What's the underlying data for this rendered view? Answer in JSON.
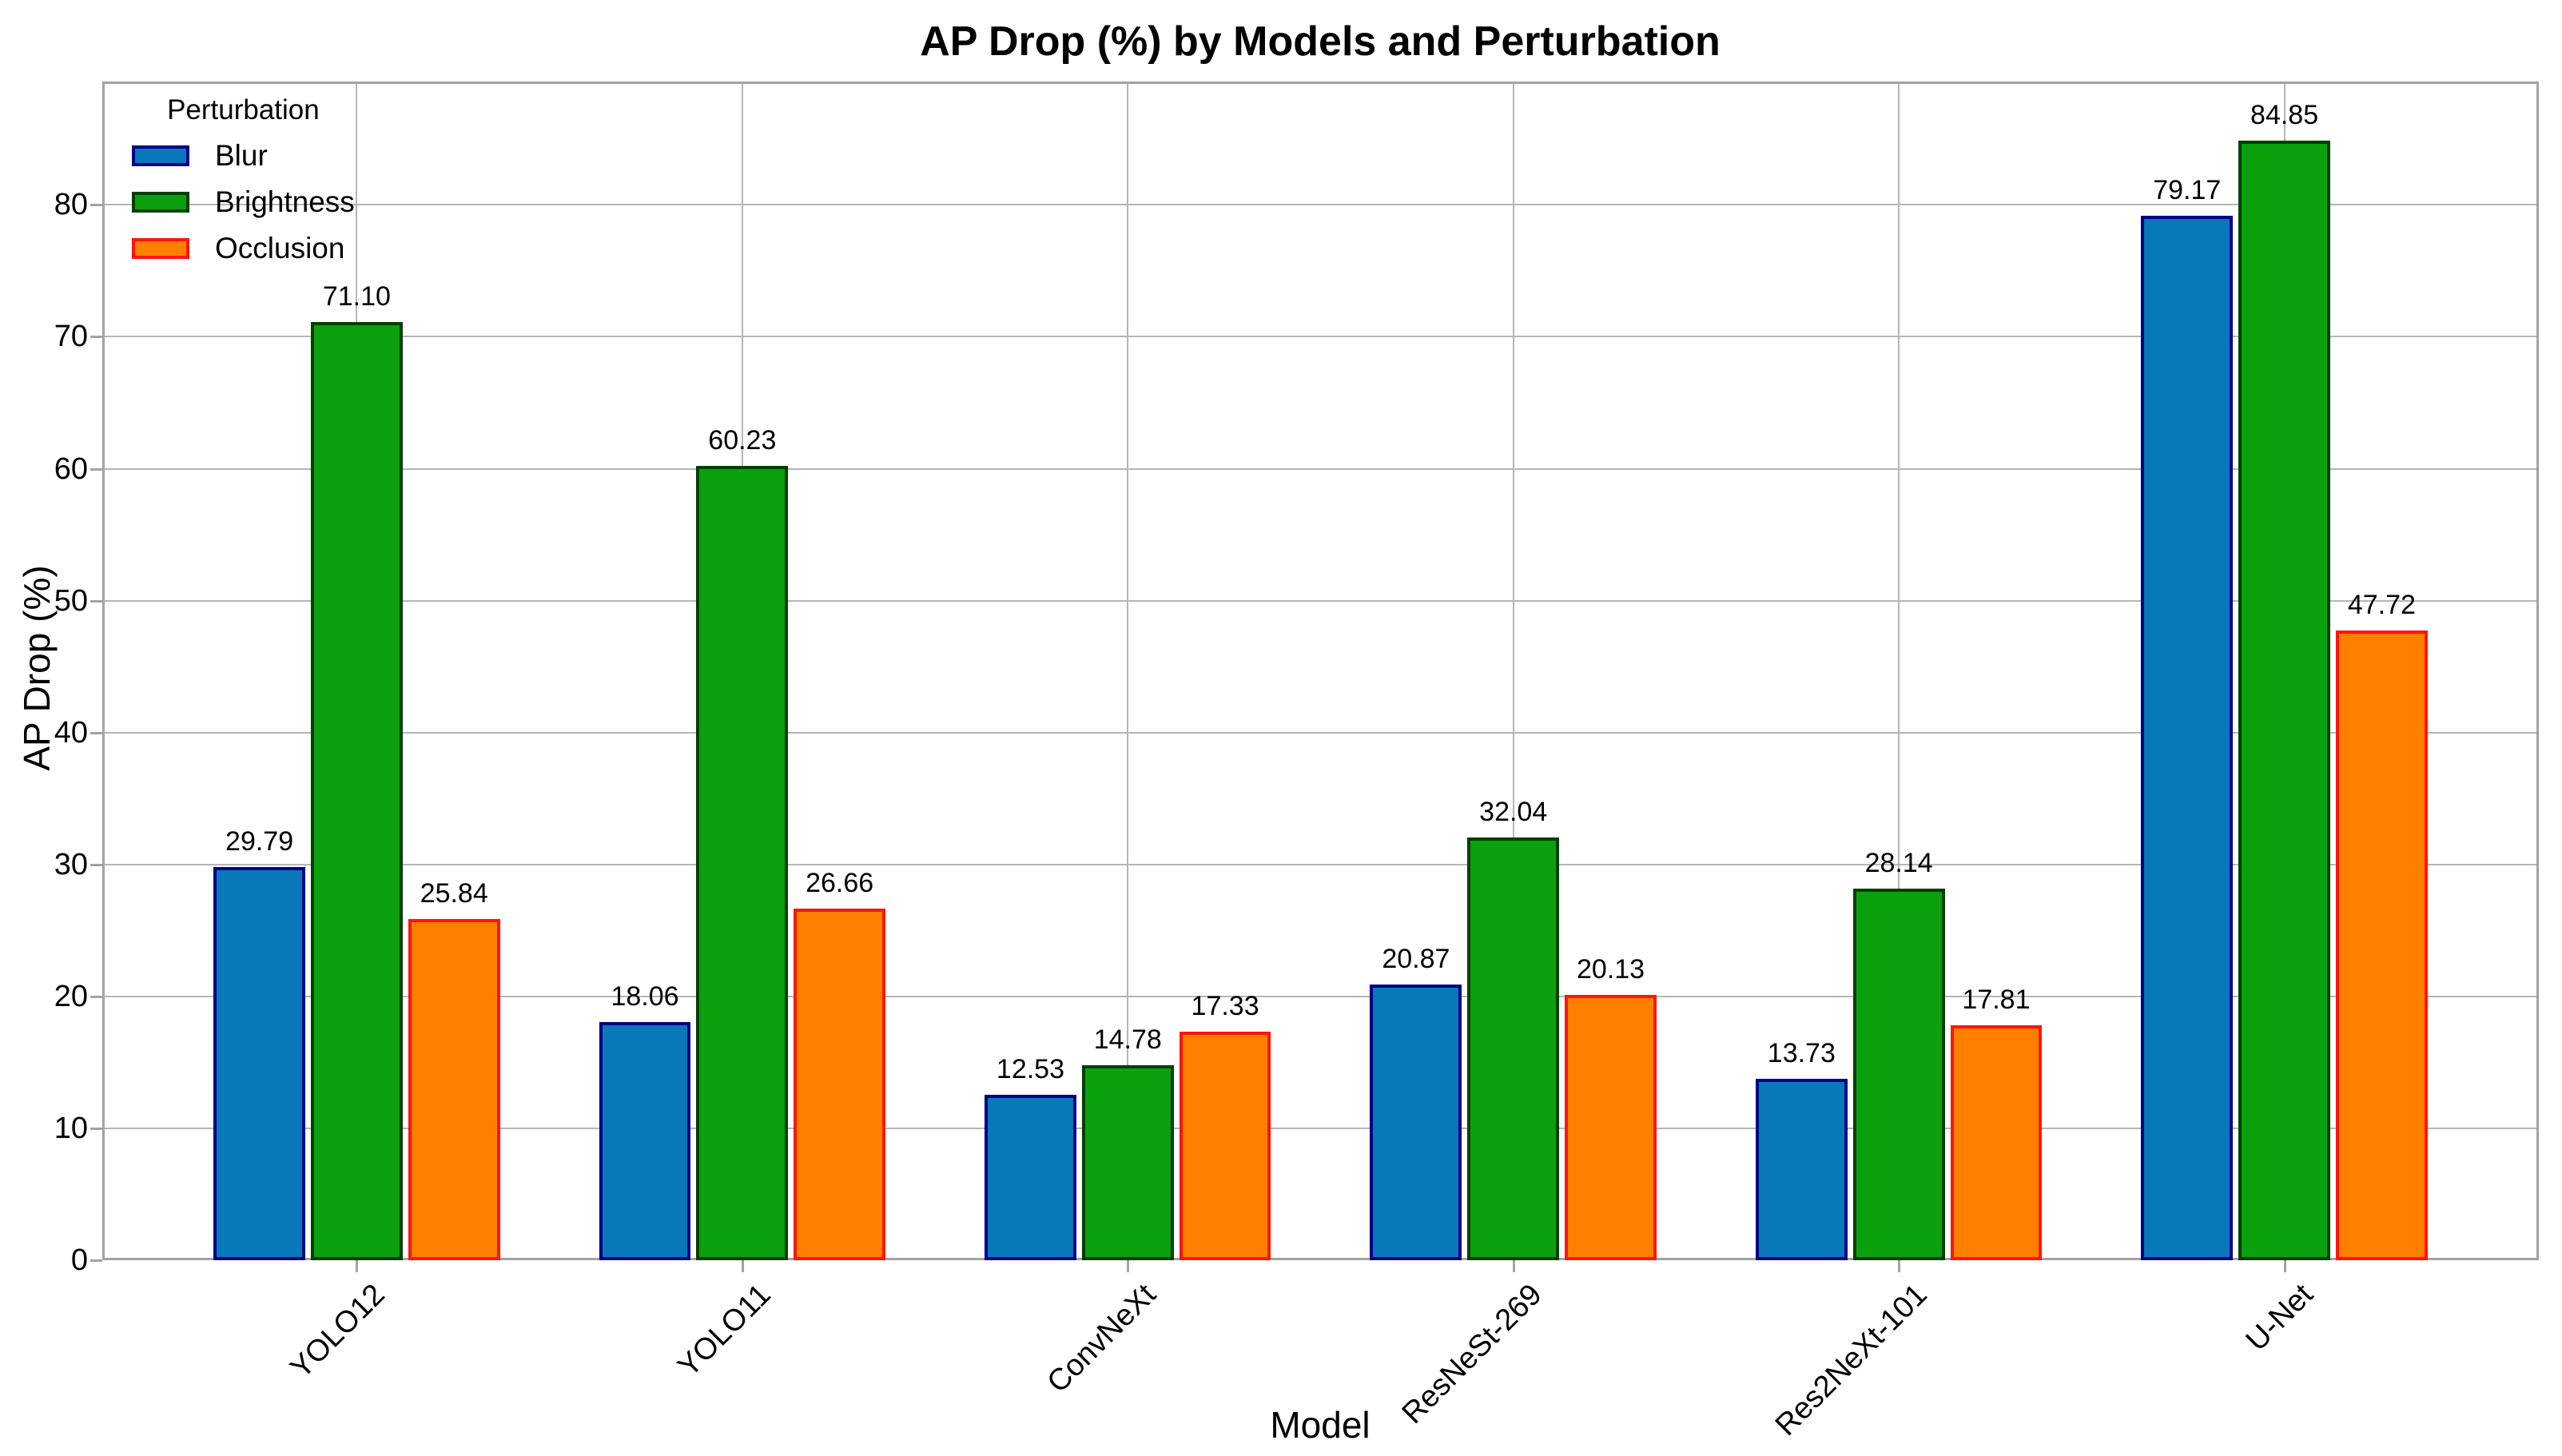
{
  "chart_data": {
    "type": "bar",
    "title": "AP Drop (%) by Models and Perturbation",
    "xlabel": "Model",
    "ylabel": "AP Drop (%)",
    "categories": [
      "YOLO12",
      "YOLO11",
      "ConvNeXt",
      "ResNeSt-269",
      "Res2NeXt-101",
      "U-Net"
    ],
    "series": [
      {
        "name": "Blur",
        "fill": "#0878b8",
        "edge": "#00008b",
        "values": [
          29.79,
          18.06,
          12.53,
          20.87,
          13.73,
          79.17
        ]
      },
      {
        "name": "Brightness",
        "fill": "#0aa00e",
        "edge": "#004000",
        "values": [
          71.1,
          60.23,
          14.78,
          32.04,
          28.14,
          84.85
        ]
      },
      {
        "name": "Occlusion",
        "fill": "#ff8000",
        "edge": "#ff150d",
        "values": [
          25.84,
          26.66,
          17.33,
          20.13,
          17.81,
          47.72
        ]
      }
    ],
    "legend_title": "Perturbation",
    "legend_position": "upper-left",
    "yticks": [
      0,
      10,
      20,
      30,
      40,
      50,
      60,
      70,
      80
    ],
    "ylim": [
      0,
      89.35
    ],
    "grid": "both",
    "value_label_decimals": 2,
    "bar_value_labels_shown": true,
    "colors": {
      "background": "#ffffff",
      "gridline": "#b6b6b6",
      "spine": "#a3a3a3",
      "text": "#000000"
    }
  }
}
